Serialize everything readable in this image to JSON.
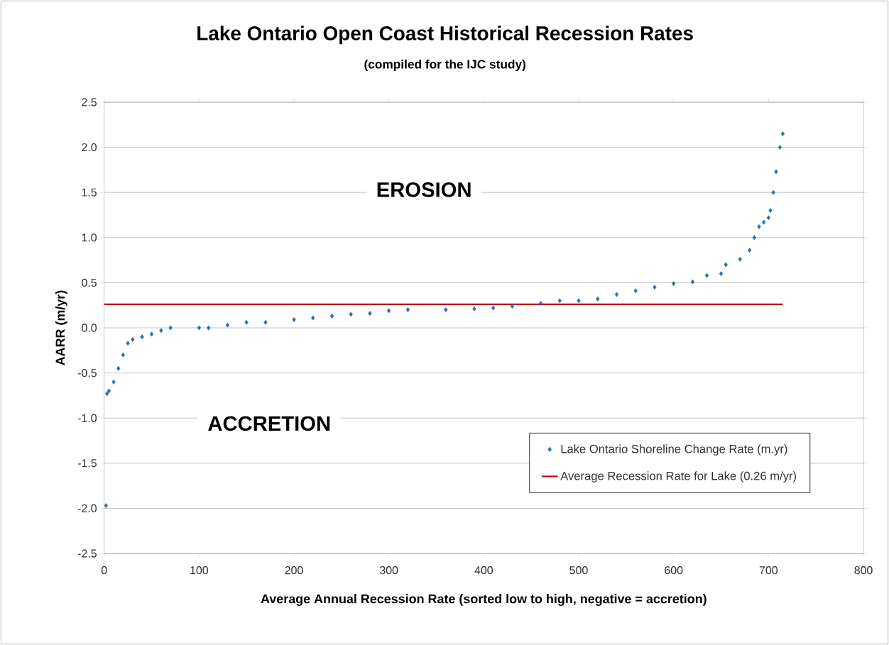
{
  "chart_data": {
    "type": "scatter",
    "title": "Lake Ontario Open Coast Historical Recession Rates",
    "subtitle": "(compiled for the IJC study)",
    "xlabel": "Average Annual Recession Rate (sorted low to high, negative = accretion)",
    "ylabel": "AARR (m/yr)",
    "annotations": [
      "EROSION",
      "ACCRETION"
    ],
    "xlim": [
      0,
      800
    ],
    "xticks": [
      0,
      100,
      200,
      300,
      400,
      500,
      600,
      700,
      800
    ],
    "ylim": [
      -2.5,
      2.5
    ],
    "yticks": [
      {
        "value": -2.5,
        "label": "-2.5"
      },
      {
        "value": -2.0,
        "label": "-2.0"
      },
      {
        "value": -1.5,
        "label": "-1.5"
      },
      {
        "value": -1.0,
        "label": "-1.0"
      },
      {
        "value": -0.5,
        "label": "-0.5"
      },
      {
        "value": 0,
        "label": "0.0"
      },
      {
        "value": 0.5,
        "label": "0.5"
      },
      {
        "value": 1.0,
        "label": "1.0"
      },
      {
        "value": 1.5,
        "label": "1.5"
      },
      {
        "value": 2.0,
        "label": "2.0"
      },
      {
        "value": 2.5,
        "label": "2.5"
      }
    ],
    "grid": "y",
    "legend": "bottom right",
    "series": [
      {
        "name": "Lake Ontario Shoreline Change Rate (m.yr)",
        "marker": "diamond",
        "color": "#2e6db4",
        "x": [
          2,
          3,
          5,
          10,
          15,
          20,
          25,
          30,
          40,
          50,
          60,
          70,
          100,
          110,
          130,
          150,
          170,
          200,
          220,
          240,
          260,
          280,
          300,
          320,
          360,
          390,
          410,
          430,
          460,
          480,
          500,
          520,
          540,
          560,
          580,
          600,
          620,
          635,
          650,
          655,
          670,
          680,
          685,
          690,
          695,
          700,
          702,
          705,
          708,
          712,
          715
        ],
        "values": [
          -1.97,
          -0.73,
          -0.7,
          -0.6,
          -0.45,
          -0.3,
          -0.17,
          -0.13,
          -0.1,
          -0.07,
          -0.03,
          0.0,
          0.0,
          0.0,
          0.03,
          0.06,
          0.06,
          0.09,
          0.11,
          0.13,
          0.15,
          0.16,
          0.19,
          0.2,
          0.2,
          0.21,
          0.22,
          0.24,
          0.27,
          0.3,
          0.3,
          0.32,
          0.37,
          0.41,
          0.45,
          0.49,
          0.51,
          0.58,
          0.6,
          0.7,
          0.76,
          0.86,
          1.0,
          1.12,
          1.17,
          1.22,
          1.3,
          1.5,
          1.73,
          2.0,
          2.15
        ]
      },
      {
        "name": "Average Recession Rate for Lake (0.26 m/yr)",
        "type": "line",
        "marker": "none",
        "color": "#c00000",
        "x": [
          0,
          715
        ],
        "values": [
          0.26,
          0.26
        ]
      }
    ]
  }
}
